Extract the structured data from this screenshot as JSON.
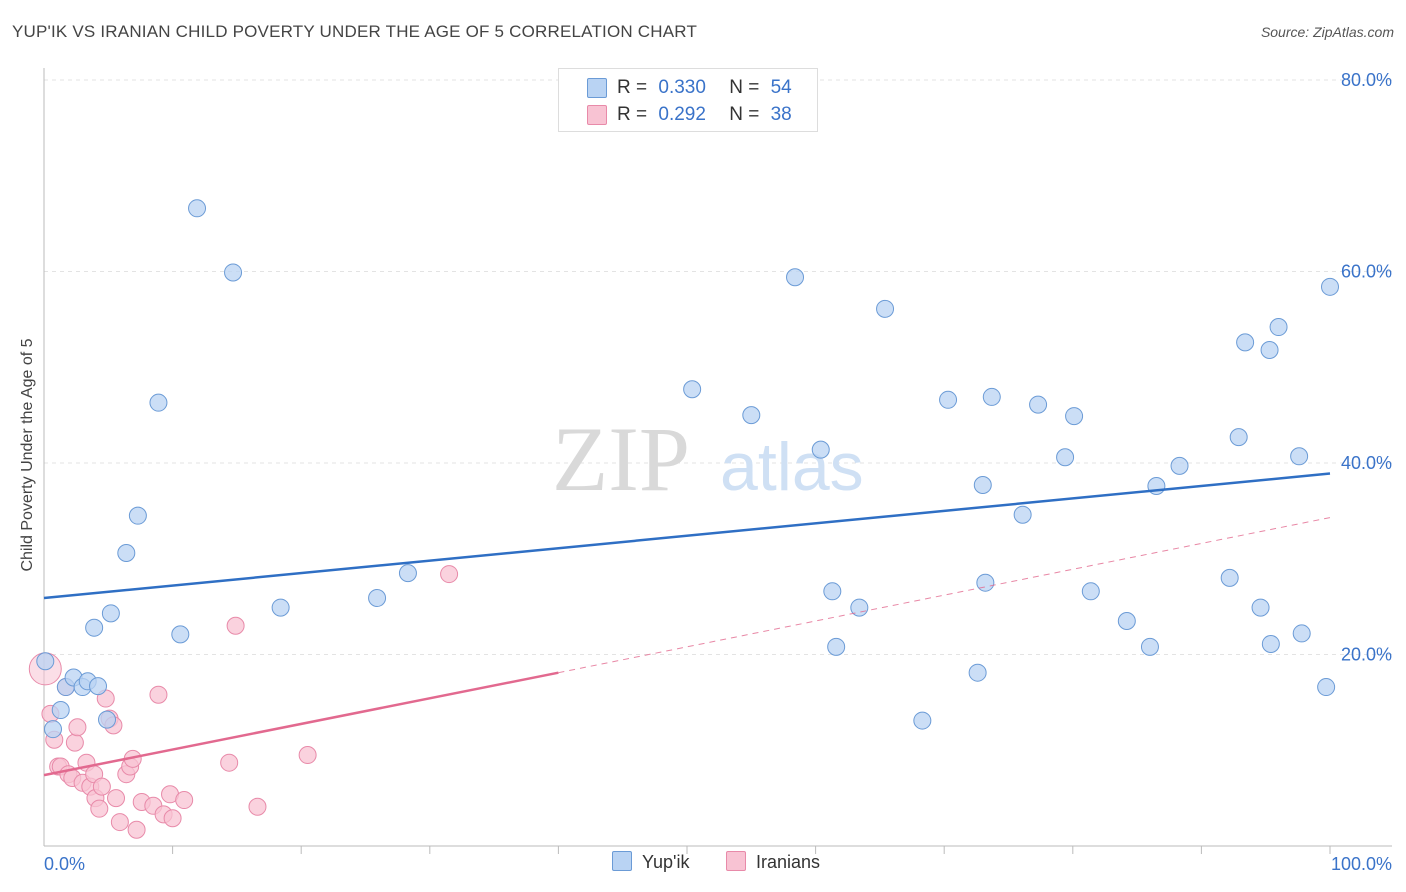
{
  "title": "YUP'IK VS IRANIAN CHILD POVERTY UNDER THE AGE OF 5 CORRELATION CHART",
  "source": "Source: ZipAtlas.com",
  "watermark": {
    "zip": "ZIP",
    "atlas": "atlas"
  },
  "legend": {
    "r_label": "R =",
    "n_label": "N =",
    "rows": [
      {
        "r": "0.330",
        "n": "54"
      },
      {
        "r": "0.292",
        "n": "38"
      }
    ]
  },
  "colors": {
    "yupik_fill": "#b9d3f3",
    "yupik_stroke": "#6b9bd6",
    "yupik_line": "#2f6fc4",
    "iranian_fill": "#f8c3d3",
    "iranian_stroke": "#e88aa9",
    "iranian_line": "#e2698f",
    "tick_label": "#3a73c9",
    "grid": "#e3e3e3"
  },
  "chart_data": {
    "type": "scatter",
    "title": "YUP'IK VS IRANIAN CHILD POVERTY UNDER THE AGE OF 5 CORRELATION CHART",
    "xlabel": "",
    "ylabel": "Child Poverty Under the Age of 5",
    "xlim": [
      0,
      100
    ],
    "ylim": [
      0,
      80
    ],
    "y_ticks": [
      20,
      40,
      60,
      80
    ],
    "y_tick_labels": [
      "20.0%",
      "40.0%",
      "60.0%",
      "80.0%"
    ],
    "x_tick_labels": [
      "0.0%",
      "100.0%"
    ],
    "grid": "horizontal dashed",
    "legend_position": "top-center",
    "series": [
      {
        "name": "Yup'ik",
        "R": 0.33,
        "N": 54,
        "trend": {
          "x": [
            0,
            100
          ],
          "y": [
            25.9,
            38.9
          ]
        },
        "points": [
          [
            0.1,
            19.3
          ],
          [
            0.7,
            12.2
          ],
          [
            1.3,
            14.2
          ],
          [
            1.7,
            16.6
          ],
          [
            2.3,
            17.6
          ],
          [
            3.0,
            16.6
          ],
          [
            3.4,
            17.2
          ],
          [
            3.9,
            22.8
          ],
          [
            4.2,
            16.7
          ],
          [
            4.9,
            13.2
          ],
          [
            5.2,
            24.3
          ],
          [
            6.4,
            30.6
          ],
          [
            7.3,
            34.5
          ],
          [
            8.9,
            46.3
          ],
          [
            10.6,
            22.1
          ],
          [
            11.9,
            66.6
          ],
          [
            14.7,
            59.9
          ],
          [
            18.4,
            24.9
          ],
          [
            25.9,
            25.9
          ],
          [
            28.3,
            28.5
          ],
          [
            50.4,
            47.7
          ],
          [
            55.0,
            45.0
          ],
          [
            58.4,
            59.4
          ],
          [
            60.4,
            41.4
          ],
          [
            61.3,
            26.6
          ],
          [
            61.6,
            20.8
          ],
          [
            63.4,
            24.9
          ],
          [
            65.4,
            56.1
          ],
          [
            68.3,
            13.1
          ],
          [
            70.3,
            46.6
          ],
          [
            72.6,
            18.1
          ],
          [
            73.0,
            37.7
          ],
          [
            73.2,
            27.5
          ],
          [
            73.7,
            46.9
          ],
          [
            76.1,
            34.6
          ],
          [
            77.3,
            46.1
          ],
          [
            79.4,
            40.6
          ],
          [
            80.1,
            44.9
          ],
          [
            81.4,
            26.6
          ],
          [
            84.2,
            23.5
          ],
          [
            86.0,
            20.8
          ],
          [
            86.5,
            37.6
          ],
          [
            88.3,
            39.7
          ],
          [
            92.2,
            28.0
          ],
          [
            92.9,
            42.7
          ],
          [
            93.4,
            52.6
          ],
          [
            94.6,
            24.9
          ],
          [
            95.3,
            51.8
          ],
          [
            95.4,
            21.1
          ],
          [
            96.0,
            54.2
          ],
          [
            97.6,
            40.7
          ],
          [
            97.8,
            22.2
          ],
          [
            99.7,
            16.6
          ],
          [
            100.0,
            58.4
          ]
        ]
      },
      {
        "name": "Iranians",
        "R": 0.292,
        "N": 38,
        "trend": {
          "x": [
            0,
            40
          ],
          "y": [
            7.4,
            18.1
          ]
        },
        "trend_extension": {
          "x": [
            40,
            100
          ],
          "y": [
            18.1,
            34.3
          ]
        },
        "points": [
          [
            0.1,
            18.5
          ],
          [
            0.5,
            13.8
          ],
          [
            0.8,
            11.1
          ],
          [
            1.1,
            8.3
          ],
          [
            1.3,
            8.3
          ],
          [
            1.7,
            16.6
          ],
          [
            1.9,
            7.5
          ],
          [
            2.2,
            7.1
          ],
          [
            2.4,
            10.8
          ],
          [
            2.6,
            12.4
          ],
          [
            3.0,
            6.6
          ],
          [
            3.3,
            8.7
          ],
          [
            3.6,
            6.2
          ],
          [
            3.9,
            7.5
          ],
          [
            4.0,
            5.0
          ],
          [
            4.3,
            3.9
          ],
          [
            4.5,
            6.2
          ],
          [
            4.8,
            15.4
          ],
          [
            5.1,
            13.3
          ],
          [
            5.4,
            12.6
          ],
          [
            5.6,
            5.0
          ],
          [
            5.9,
            2.5
          ],
          [
            6.4,
            7.5
          ],
          [
            6.7,
            8.3
          ],
          [
            6.9,
            9.1
          ],
          [
            7.2,
            1.7
          ],
          [
            7.6,
            4.6
          ],
          [
            8.5,
            4.2
          ],
          [
            8.9,
            15.8
          ],
          [
            9.3,
            3.3
          ],
          [
            9.8,
            5.4
          ],
          [
            10.0,
            2.9
          ],
          [
            10.9,
            4.8
          ],
          [
            14.4,
            8.7
          ],
          [
            14.9,
            23.0
          ],
          [
            16.6,
            4.1
          ],
          [
            20.5,
            9.5
          ],
          [
            31.5,
            28.4
          ]
        ]
      }
    ]
  },
  "bottom_legend": [
    {
      "label": "Yup'ik"
    },
    {
      "label": "Iranians"
    }
  ]
}
